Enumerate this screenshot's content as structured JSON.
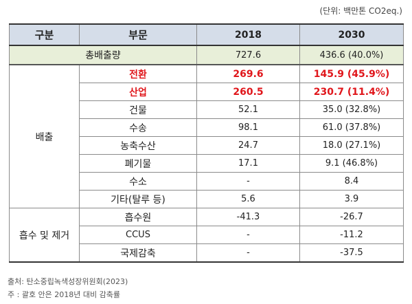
{
  "unit_note": "(단위: 백만톤 CO2eq.)",
  "headers": {
    "group": "구분",
    "sector": "부문",
    "y2018": "2018",
    "y2030": "2030"
  },
  "total": {
    "label": "총배출량",
    "v2018": "727.6",
    "v2030": "436.6 (40.0%)"
  },
  "emission_group": "배출",
  "removal_group": "흡수 및 제거",
  "emissions": [
    {
      "sector": "전환",
      "v2018": "269.6",
      "v2030": "145.9 (45.9%)",
      "highlight": true
    },
    {
      "sector": "산업",
      "v2018": "260.5",
      "v2030": "230.7 (11.4%)",
      "highlight": true
    },
    {
      "sector": "건물",
      "v2018": "52.1",
      "v2030": "35.0 (32.8%)"
    },
    {
      "sector": "수송",
      "v2018": "98.1",
      "v2030": "61.0 (37.8%)"
    },
    {
      "sector": "농축수산",
      "v2018": "24.7",
      "v2030": "18.0 (27.1%)"
    },
    {
      "sector": "폐기물",
      "v2018": "17.1",
      "v2030": "9.1 (46.8%)"
    },
    {
      "sector": "수소",
      "v2018": "-",
      "v2030": "8.4"
    },
    {
      "sector": "기타(탈루 등)",
      "v2018": "5.6",
      "v2030": "3.9"
    }
  ],
  "removals": [
    {
      "sector": "흡수원",
      "v2018": "-41.3",
      "v2030": "-26.7"
    },
    {
      "sector": "CCUS",
      "v2018": "-",
      "v2030": "-11.2"
    },
    {
      "sector": "국제감축",
      "v2018": "-",
      "v2030": "-37.5"
    }
  ],
  "notes": {
    "source": "출처: 탄소중립녹색성장위원회(2023)",
    "remark": "주 : 괄호 안은 2018년 대비 감축률"
  }
}
